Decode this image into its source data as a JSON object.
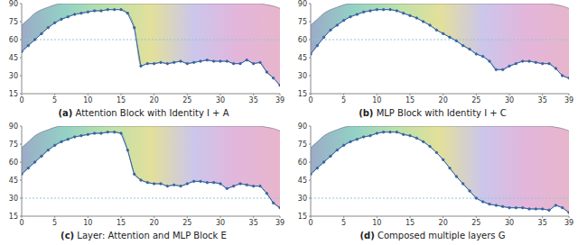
{
  "chart_data": [
    {
      "type": "line",
      "title": "(a) Attention Block with Identity I + A",
      "x": [
        0,
        1,
        2,
        3,
        4,
        5,
        6,
        7,
        8,
        9,
        10,
        11,
        12,
        13,
        14,
        15,
        16,
        17,
        18,
        19,
        20,
        21,
        22,
        23,
        24,
        25,
        26,
        27,
        28,
        29,
        30,
        31,
        32,
        33,
        34,
        35,
        36,
        37,
        38,
        39
      ],
      "xlim": [
        0,
        39
      ],
      "xticks": [
        0,
        5,
        10,
        15,
        20,
        25,
        30,
        35,
        39
      ],
      "ylim": [
        15,
        90
      ],
      "yticks": [
        15,
        30,
        45,
        60,
        75,
        90
      ],
      "grid": false,
      "hline": 60,
      "series": [
        {
          "type": "area",
          "low": [
            50,
            55,
            60,
            65,
            70,
            74,
            77,
            79,
            81,
            82,
            83,
            84,
            84,
            85,
            85,
            85,
            82,
            70,
            38,
            40,
            40,
            41,
            40,
            41,
            42,
            40,
            41,
            42,
            43,
            42,
            42,
            42,
            40,
            40,
            43,
            40,
            41,
            33,
            28,
            22
          ],
          "high": [
            72,
            77,
            82,
            85,
            87,
            89,
            90,
            90,
            90,
            90,
            90,
            90,
            90,
            90,
            90,
            90,
            90,
            90,
            90,
            90,
            90,
            90,
            90,
            90,
            90,
            90,
            90,
            90,
            90,
            90,
            90,
            90,
            90,
            90,
            90,
            90,
            90,
            89,
            88,
            86
          ]
        },
        {
          "type": "line",
          "color": "#3465a4",
          "marker": "dot",
          "values": [
            50,
            55,
            60,
            65,
            70,
            74,
            77,
            79,
            81,
            82,
            83,
            84,
            84,
            85,
            85,
            85,
            82,
            70,
            38,
            40,
            40,
            41,
            40,
            41,
            42,
            40,
            41,
            42,
            43,
            42,
            42,
            42,
            40,
            40,
            43,
            40,
            41,
            33,
            28,
            22
          ]
        }
      ]
    },
    {
      "type": "line",
      "title": "(b) MLP Block with Identity I + C",
      "x": [
        0,
        1,
        2,
        3,
        4,
        5,
        6,
        7,
        8,
        9,
        10,
        11,
        12,
        13,
        14,
        15,
        16,
        17,
        18,
        19,
        20,
        21,
        22,
        23,
        24,
        25,
        26,
        27,
        28,
        29,
        30,
        31,
        32,
        33,
        34,
        35,
        36,
        37,
        38,
        39
      ],
      "xlim": [
        0,
        39
      ],
      "xticks": [
        0,
        5,
        10,
        15,
        20,
        25,
        30,
        35,
        39
      ],
      "ylim": [
        15,
        90
      ],
      "yticks": [
        15,
        30,
        45,
        60,
        75,
        90
      ],
      "grid": false,
      "hline": 60,
      "series": [
        {
          "type": "area",
          "low": [
            48,
            55,
            62,
            68,
            72,
            76,
            79,
            81,
            83,
            84,
            85,
            85,
            85,
            84,
            82,
            80,
            78,
            75,
            72,
            68,
            65,
            62,
            59,
            55,
            52,
            48,
            46,
            42,
            35,
            35,
            38,
            40,
            42,
            42,
            41,
            40,
            40,
            36,
            30,
            28
          ],
          "high": [
            72,
            77,
            82,
            85,
            87,
            89,
            90,
            90,
            90,
            90,
            90,
            90,
            90,
            90,
            90,
            90,
            90,
            90,
            90,
            90,
            90,
            90,
            90,
            90,
            90,
            90,
            90,
            90,
            90,
            90,
            90,
            90,
            90,
            90,
            90,
            90,
            90,
            89,
            88,
            86
          ]
        },
        {
          "type": "line",
          "color": "#3465a4",
          "marker": "dot",
          "values": [
            48,
            55,
            62,
            68,
            72,
            76,
            79,
            81,
            83,
            84,
            85,
            85,
            85,
            84,
            82,
            80,
            78,
            75,
            72,
            68,
            65,
            62,
            59,
            55,
            52,
            48,
            46,
            42,
            35,
            35,
            38,
            40,
            42,
            42,
            41,
            40,
            40,
            36,
            30,
            28
          ]
        }
      ]
    },
    {
      "type": "line",
      "title": "(c) Layer: Attention and MLP Block E",
      "x": [
        0,
        1,
        2,
        3,
        4,
        5,
        6,
        7,
        8,
        9,
        10,
        11,
        12,
        13,
        14,
        15,
        16,
        17,
        18,
        19,
        20,
        21,
        22,
        23,
        24,
        25,
        26,
        27,
        28,
        29,
        30,
        31,
        32,
        33,
        34,
        35,
        36,
        37,
        38,
        39
      ],
      "xlim": [
        0,
        39
      ],
      "xticks": [
        0,
        5,
        10,
        15,
        20,
        25,
        30,
        35,
        39
      ],
      "ylim": [
        15,
        90
      ],
      "yticks": [
        15,
        30,
        45,
        60,
        75,
        90
      ],
      "grid": false,
      "hline": 30,
      "series": [
        {
          "type": "area",
          "low": [
            50,
            55,
            60,
            65,
            70,
            74,
            77,
            79,
            81,
            82,
            83,
            84,
            84,
            85,
            85,
            84,
            70,
            50,
            45,
            43,
            42,
            42,
            40,
            41,
            40,
            42,
            44,
            44,
            43,
            43,
            42,
            38,
            40,
            42,
            41,
            40,
            40,
            34,
            26,
            22
          ],
          "high": [
            72,
            77,
            82,
            85,
            87,
            89,
            90,
            90,
            90,
            90,
            90,
            90,
            90,
            90,
            90,
            90,
            90,
            90,
            90,
            90,
            90,
            90,
            90,
            90,
            90,
            90,
            90,
            90,
            90,
            90,
            90,
            90,
            90,
            90,
            90,
            90,
            90,
            89,
            88,
            86
          ]
        },
        {
          "type": "line",
          "color": "#3465a4",
          "marker": "dot",
          "values": [
            50,
            55,
            60,
            65,
            70,
            74,
            77,
            79,
            81,
            82,
            83,
            84,
            84,
            85,
            85,
            84,
            70,
            50,
            45,
            43,
            42,
            42,
            40,
            41,
            40,
            42,
            44,
            44,
            43,
            43,
            42,
            38,
            40,
            42,
            41,
            40,
            40,
            34,
            26,
            22
          ]
        }
      ]
    },
    {
      "type": "line",
      "title": "(d) Composed multiple layers G",
      "x": [
        0,
        1,
        2,
        3,
        4,
        5,
        6,
        7,
        8,
        9,
        10,
        11,
        12,
        13,
        14,
        15,
        16,
        17,
        18,
        19,
        20,
        21,
        22,
        23,
        24,
        25,
        26,
        27,
        28,
        29,
        30,
        31,
        32,
        33,
        34,
        35,
        36,
        37,
        38,
        39
      ],
      "xlim": [
        0,
        39
      ],
      "xticks": [
        0,
        5,
        10,
        15,
        20,
        25,
        30,
        35,
        39
      ],
      "ylim": [
        15,
        90
      ],
      "yticks": [
        15,
        30,
        45,
        60,
        75,
        90
      ],
      "grid": false,
      "hline": 30,
      "series": [
        {
          "type": "area",
          "low": [
            50,
            55,
            60,
            65,
            70,
            74,
            77,
            79,
            81,
            82,
            84,
            85,
            85,
            85,
            83,
            82,
            80,
            77,
            73,
            68,
            62,
            55,
            48,
            42,
            36,
            30,
            27,
            25,
            24,
            23,
            22,
            22,
            22,
            21,
            21,
            21,
            20,
            24,
            22,
            18
          ],
          "high": [
            72,
            77,
            82,
            85,
            87,
            89,
            90,
            90,
            90,
            90,
            90,
            90,
            90,
            90,
            90,
            90,
            90,
            90,
            90,
            90,
            90,
            90,
            90,
            90,
            90,
            90,
            90,
            90,
            90,
            90,
            90,
            90,
            90,
            90,
            90,
            90,
            90,
            89,
            88,
            86
          ]
        },
        {
          "type": "line",
          "color": "#3465a4",
          "marker": "dot",
          "values": [
            50,
            55,
            60,
            65,
            70,
            74,
            77,
            79,
            81,
            82,
            84,
            85,
            85,
            85,
            83,
            82,
            80,
            77,
            73,
            68,
            62,
            55,
            48,
            42,
            36,
            30,
            27,
            25,
            24,
            23,
            22,
            22,
            22,
            21,
            21,
            21,
            20,
            24,
            22,
            18
          ]
        }
      ]
    }
  ]
}
